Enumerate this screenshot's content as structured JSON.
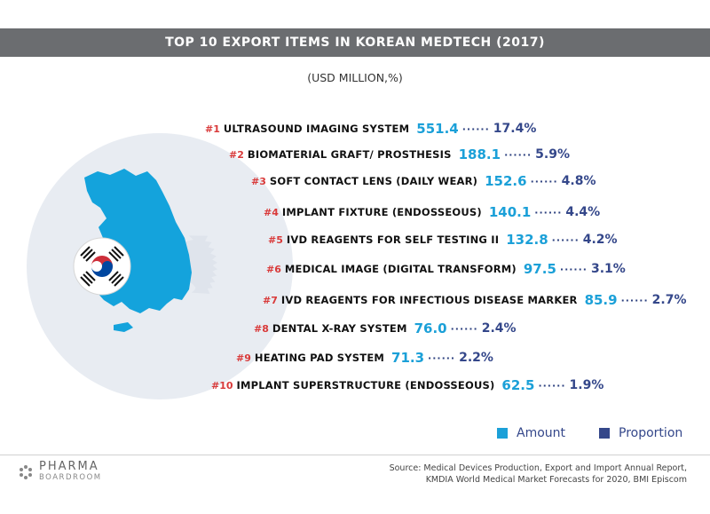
{
  "title": "TOP 10 EXPORT ITEMS IN KOREAN MEDTECH (2017)",
  "subtitle": "(USD MILLION,%)",
  "colors": {
    "amount": "#1ba0d8",
    "proportion": "#34478a",
    "rank": "#d93a3a",
    "title_bar": "#6b6d70",
    "map": "#14a3dc",
    "circle": "#e8ecf2",
    "arrows": "#dfe4ec"
  },
  "chart_data": {
    "type": "table",
    "title": "TOP 10 EXPORT ITEMS IN KOREAN MEDTECH (2017)",
    "subtitle": "(USD MILLION,%)",
    "legend": [
      "Amount",
      "Proportion"
    ],
    "legend_placement": "bottom-right",
    "items": [
      {
        "rank": "#1",
        "name": "ULTRASOUND IMAGING SYSTEM",
        "amount": "551.4",
        "proportion": "17.4%"
      },
      {
        "rank": "#2",
        "name": "BIOMATERIAL GRAFT/ PROSTHESIS",
        "amount": "188.1",
        "proportion": "5.9%"
      },
      {
        "rank": "#3",
        "name": "SOFT CONTACT LENS (DAILY WEAR)",
        "amount": "152.6",
        "proportion": "4.8%"
      },
      {
        "rank": "#4",
        "name": "IMPLANT FIXTURE (ENDOSSEOUS)",
        "amount": "140.1",
        "proportion": "4.4%"
      },
      {
        "rank": "#5",
        "name": "IVD REAGENTS FOR SELF TESTING II",
        "amount": "132.8",
        "proportion": "4.2%"
      },
      {
        "rank": "#6",
        "name": "MEDICAL IMAGE (DIGITAL TRANSFORM)",
        "amount": "97.5",
        "proportion": "3.1%"
      },
      {
        "rank": "#7",
        "name": "IVD REAGENTS FOR INFECTIOUS DISEASE MARKER",
        "amount": "85.9",
        "proportion": "2.7%"
      },
      {
        "rank": "#8",
        "name": "DENTAL X-RAY SYSTEM",
        "amount": "76.0",
        "proportion": "2.4%"
      },
      {
        "rank": "#9",
        "name": "HEATING PAD SYSTEM",
        "amount": "71.3",
        "proportion": "2.2%"
      },
      {
        "rank": "#10",
        "name": "IMPLANT SUPERSTRUCTURE (ENDOSSEOUS)",
        "amount": "62.5",
        "proportion": "1.9%"
      }
    ]
  },
  "legend": {
    "amount_label": "Amount",
    "proportion_label": "Proportion"
  },
  "footer": {
    "logo_main": "PHARMA",
    "logo_sub": "BOARDROOM",
    "source_line1": "Source: Medical Devices Production, Export and Import Annual Report,",
    "source_line2": "KMDIA World Medical Market Forecasts for 2020, BMI Episcom"
  }
}
